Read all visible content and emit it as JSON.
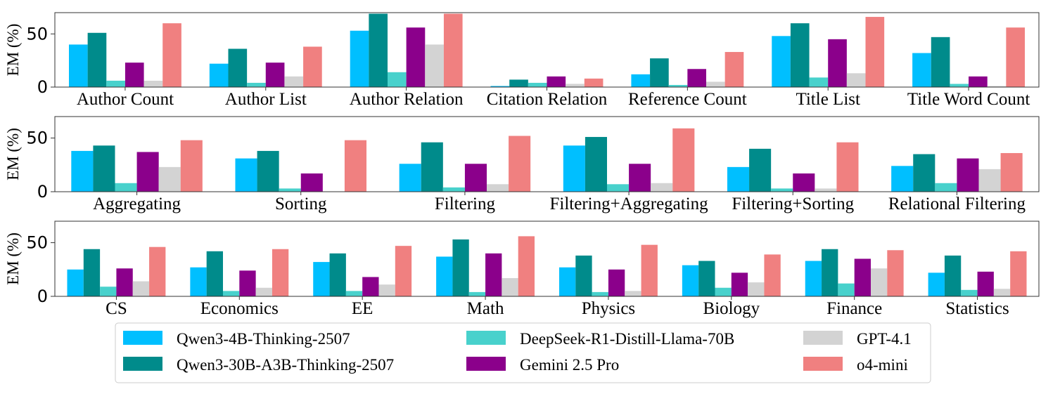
{
  "colors": {
    "Qwen3-4B-Thinking-2507": "#00bfff",
    "Qwen3-30B-A3B-Thinking-2507": "#008b8b",
    "DeepSeek-R1-Distill-Llama-70B": "#48d1cc",
    "Gemini 2.5 Pro": "#8b008b",
    "GPT-4.1": "#d3d3d3",
    "o4-mini": "#f08080"
  },
  "chart_data": [
    {
      "type": "bar",
      "ylabel": "EM (%)",
      "ylim": [
        0,
        70
      ],
      "yticks": [
        0,
        50
      ],
      "categories": [
        "Author Count",
        "Author List",
        "Author Relation",
        "Citation Relation",
        "Reference Count",
        "Title List",
        "Title Word Count"
      ],
      "series": [
        {
          "name": "Qwen3-4B-Thinking-2507",
          "values": [
            40,
            22,
            53,
            1,
            12,
            48,
            32
          ]
        },
        {
          "name": "Qwen3-30B-A3B-Thinking-2507",
          "values": [
            51,
            36,
            69,
            7,
            27,
            60,
            47
          ]
        },
        {
          "name": "DeepSeek-R1-Distill-Llama-70B",
          "values": [
            6,
            4,
            14,
            4,
            2,
            9,
            3
          ]
        },
        {
          "name": "Gemini 2.5 Pro",
          "values": [
            23,
            23,
            56,
            10,
            17,
            45,
            10
          ]
        },
        {
          "name": "GPT-4.1",
          "values": [
            6,
            10,
            40,
            3,
            5,
            13,
            1
          ]
        },
        {
          "name": "o4-mini",
          "values": [
            60,
            38,
            69,
            8,
            33,
            66,
            56
          ]
        }
      ]
    },
    {
      "type": "bar",
      "ylabel": "EM (%)",
      "ylim": [
        0,
        70
      ],
      "yticks": [
        0,
        50
      ],
      "categories": [
        "Aggregating",
        "Sorting",
        "Filtering",
        "Filtering+Aggregating",
        "Filtering+Sorting",
        "Relational Filtering"
      ],
      "series": [
        {
          "name": "Qwen3-4B-Thinking-2507",
          "values": [
            38,
            31,
            26,
            43,
            23,
            24
          ]
        },
        {
          "name": "Qwen3-30B-A3B-Thinking-2507",
          "values": [
            43,
            38,
            46,
            51,
            40,
            35
          ]
        },
        {
          "name": "DeepSeek-R1-Distill-Llama-70B",
          "values": [
            8,
            3,
            4,
            7,
            3,
            8
          ]
        },
        {
          "name": "Gemini 2.5 Pro",
          "values": [
            37,
            17,
            26,
            26,
            17,
            31
          ]
        },
        {
          "name": "GPT-4.1",
          "values": [
            23,
            0,
            7,
            8,
            3,
            21
          ]
        },
        {
          "name": "o4-mini",
          "values": [
            48,
            48,
            52,
            59,
            46,
            36
          ]
        }
      ]
    },
    {
      "type": "bar",
      "ylabel": "EM (%)",
      "ylim": [
        0,
        70
      ],
      "yticks": [
        0,
        50
      ],
      "categories": [
        "CS",
        "Economics",
        "EE",
        "Math",
        "Physics",
        "Biology",
        "Finance",
        "Statistics"
      ],
      "series": [
        {
          "name": "Qwen3-4B-Thinking-2507",
          "values": [
            25,
            27,
            32,
            37,
            27,
            29,
            33,
            22
          ]
        },
        {
          "name": "Qwen3-30B-A3B-Thinking-2507",
          "values": [
            44,
            42,
            40,
            53,
            38,
            33,
            44,
            38
          ]
        },
        {
          "name": "DeepSeek-R1-Distill-Llama-70B",
          "values": [
            9,
            5,
            5,
            4,
            4,
            8,
            12,
            6
          ]
        },
        {
          "name": "Gemini 2.5 Pro",
          "values": [
            26,
            24,
            18,
            40,
            25,
            22,
            35,
            23
          ]
        },
        {
          "name": "GPT-4.1",
          "values": [
            14,
            8,
            11,
            17,
            5,
            13,
            26,
            7
          ]
        },
        {
          "name": "o4-mini",
          "values": [
            46,
            44,
            47,
            56,
            48,
            39,
            43,
            42
          ]
        }
      ]
    }
  ],
  "legend": {
    "placement": "bottom-center",
    "entries": [
      "Qwen3-4B-Thinking-2507",
      "Qwen3-30B-A3B-Thinking-2507",
      "DeepSeek-R1-Distill-Llama-70B",
      "Gemini 2.5 Pro",
      "GPT-4.1",
      "o4-mini"
    ]
  }
}
